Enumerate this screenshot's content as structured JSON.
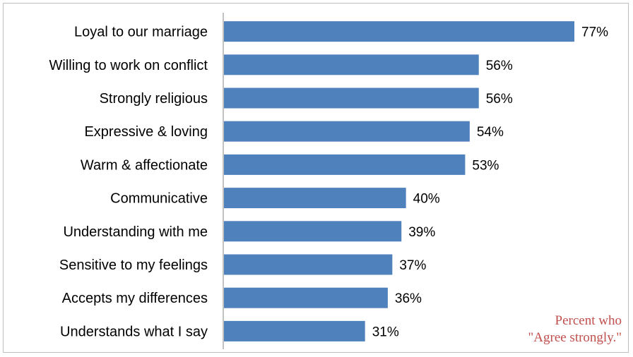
{
  "chart_data": {
    "type": "bar",
    "orientation": "horizontal",
    "categories": [
      "Loyal to our marriage",
      "Willing to work on conflict",
      "Strongly religious",
      "Expressive & loving",
      "Warm & affectionate",
      "Communicative",
      "Understanding with me",
      "Sensitive to my feelings",
      "Accepts my differences",
      "Understands what I say"
    ],
    "values": [
      77,
      56,
      56,
      54,
      53,
      40,
      39,
      37,
      36,
      31
    ],
    "value_labels": [
      "77%",
      "56%",
      "56%",
      "54%",
      "53%",
      "40%",
      "39%",
      "37%",
      "36%",
      "31%"
    ],
    "xlim": [
      0,
      80
    ],
    "bar_color": "#4f81bd",
    "grid": false,
    "note": {
      "line1": "Percent who",
      "line2": "\"Agree strongly.\"",
      "color": "#c0504d"
    }
  }
}
